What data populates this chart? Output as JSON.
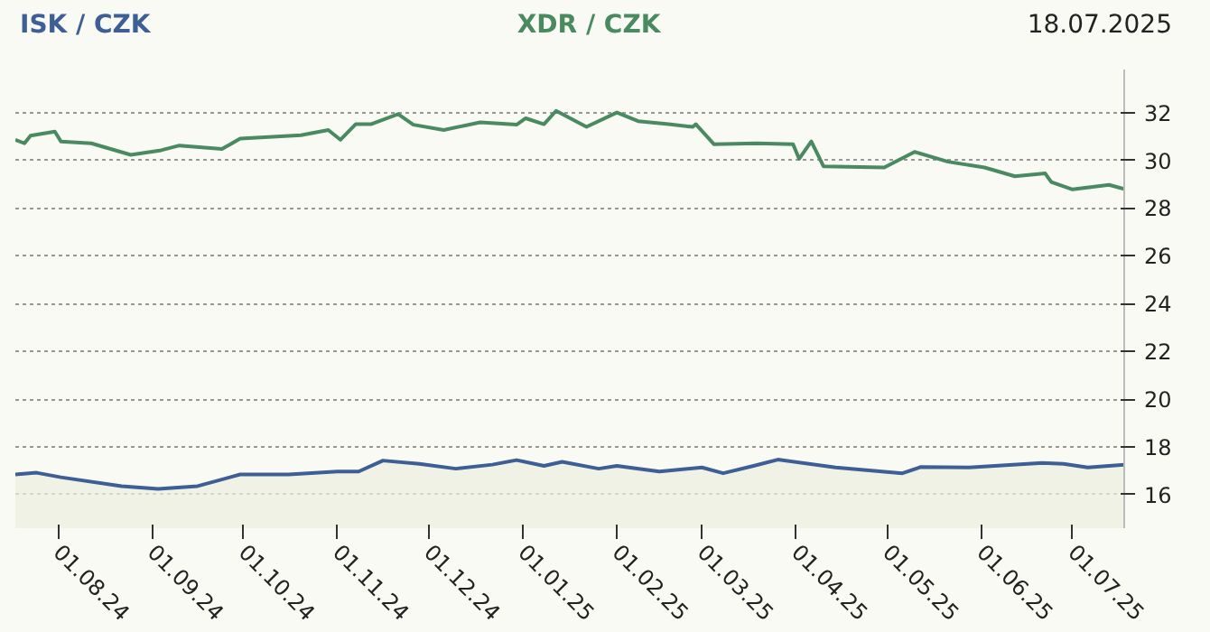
{
  "chart_data": {
    "type": "line",
    "annotations": [
      "18.07.2025"
    ],
    "xlim": [
      "2024-07-18",
      "2025-07-18"
    ],
    "xticks": [
      {
        "value": "2024-08-01",
        "label": "01.08.24"
      },
      {
        "value": "2024-09-01",
        "label": "01.09.24"
      },
      {
        "value": "2024-10-01",
        "label": "01.10.24"
      },
      {
        "value": "2024-11-01",
        "label": "01.11.24"
      },
      {
        "value": "2024-12-01",
        "label": "01.12.24"
      },
      {
        "value": "2025-01-01",
        "label": "01.01.25"
      },
      {
        "value": "2025-02-01",
        "label": "01.02.25"
      },
      {
        "value": "2025-03-01",
        "label": "01.03.25"
      },
      {
        "value": "2025-04-01",
        "label": "01.04.25"
      },
      {
        "value": "2025-05-01",
        "label": "01.05.25"
      },
      {
        "value": "2025-06-01",
        "label": "01.06.25"
      },
      {
        "value": "2025-07-01",
        "label": "01.07.25"
      }
    ],
    "ylim": [
      14.6,
      33.8
    ],
    "yticks": [
      16,
      18,
      20,
      22,
      24,
      26,
      28,
      30,
      32
    ],
    "grid": true,
    "series": [
      {
        "name": "ISK / CZK",
        "type": "area",
        "color": "#3d5f96",
        "x": [
          "2024-07-18",
          "2024-07-25",
          "2024-08-02",
          "2024-08-22",
          "2024-09-03",
          "2024-09-16",
          "2024-09-30",
          "2024-10-16",
          "2024-11-01",
          "2024-11-08",
          "2024-11-16",
          "2024-11-28",
          "2024-12-10",
          "2024-12-22",
          "2024-12-30",
          "2025-01-08",
          "2025-01-14",
          "2025-01-26",
          "2025-02-01",
          "2025-02-15",
          "2025-03-01",
          "2025-03-08",
          "2025-03-18",
          "2025-03-26",
          "2025-04-14",
          "2025-05-06",
          "2025-05-12",
          "2025-05-28",
          "2025-06-21",
          "2025-06-28",
          "2025-07-06",
          "2025-07-18"
        ],
        "values": [
          16.85,
          16.92,
          16.73,
          16.36,
          16.24,
          16.36,
          16.85,
          16.85,
          16.97,
          16.97,
          17.43,
          17.29,
          17.09,
          17.26,
          17.45,
          17.21,
          17.38,
          17.09,
          17.21,
          16.97,
          17.14,
          16.9,
          17.21,
          17.47,
          17.14,
          16.9,
          17.16,
          17.14,
          17.33,
          17.29,
          17.14,
          17.26
        ]
      },
      {
        "name": "XDR / CZK",
        "color": "#4a8a60",
        "x": [
          "2024-07-18",
          "2024-07-21",
          "2024-07-23",
          "2024-07-31",
          "2024-08-02",
          "2024-08-12",
          "2024-08-25",
          "2024-09-04",
          "2024-09-10",
          "2024-09-24",
          "2024-09-30",
          "2024-10-20",
          "2024-10-29",
          "2024-11-02",
          "2024-11-07",
          "2024-11-12",
          "2024-11-21",
          "2024-11-26",
          "2024-12-06",
          "2024-12-18",
          "2024-12-30",
          "2025-01-02",
          "2025-01-08",
          "2025-01-12",
          "2025-01-22",
          "2025-02-01",
          "2025-02-08",
          "2025-02-18",
          "2025-02-26",
          "2025-02-27",
          "2025-03-05",
          "2025-03-19",
          "2025-03-31",
          "2025-04-02",
          "2025-04-06",
          "2025-04-10",
          "2025-04-30",
          "2025-05-10",
          "2025-05-21",
          "2025-06-02",
          "2025-06-12",
          "2025-06-22",
          "2025-06-24",
          "2025-07-01",
          "2025-07-13",
          "2025-07-18"
        ],
        "values": [
          30.86,
          30.71,
          31.03,
          31.2,
          30.79,
          30.71,
          30.23,
          30.42,
          30.62,
          30.47,
          30.91,
          31.05,
          31.27,
          30.86,
          31.51,
          31.51,
          31.93,
          31.49,
          31.27,
          31.59,
          31.49,
          31.76,
          31.51,
          32.07,
          31.4,
          32.0,
          31.64,
          31.51,
          31.4,
          31.51,
          30.67,
          30.71,
          30.67,
          30.06,
          30.79,
          29.75,
          29.7,
          30.35,
          29.94,
          29.7,
          29.33,
          29.45,
          29.09,
          28.78,
          28.97,
          28.8
        ]
      }
    ]
  }
}
